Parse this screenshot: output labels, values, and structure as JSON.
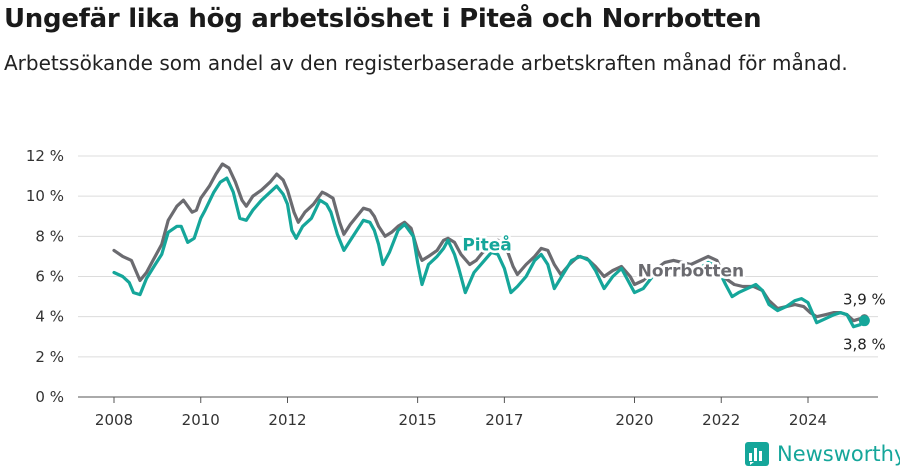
{
  "title": "Ungefär lika hög arbetslöshet i Piteå och Norrbotten",
  "subtitle": "Arbetssökande som andel av den registerbaserade arbetskraften månad för månad.",
  "brand": {
    "name": "Newsworthy",
    "icon": "newsworthy-logo-icon",
    "color": "#15a69a"
  },
  "chart_data": {
    "type": "line",
    "y_unit": "%",
    "ylim": [
      0,
      12
    ],
    "y_ticks": [
      "0 %",
      "2 %",
      "4 %",
      "6 %",
      "8 %",
      "10 %",
      "12 %"
    ],
    "y_tick_values": [
      0,
      2,
      4,
      6,
      8,
      10,
      12
    ],
    "x_ticks": [
      "2008",
      "2010",
      "2012",
      "2015",
      "2017",
      "2020",
      "2022",
      "2024"
    ],
    "x_tick_years": [
      2008,
      2010,
      2012,
      2015,
      2017,
      2020,
      2022,
      2024
    ],
    "xlim": [
      2007.8,
      2025.5
    ],
    "grid": "horizontal",
    "series": [
      {
        "name": "Norrbotten",
        "color": "#6b6b70",
        "label": "Norrbotten",
        "end_label": "3,9 %",
        "points": [
          [
            2008.0,
            7.3
          ],
          [
            2008.2,
            7.0
          ],
          [
            2008.4,
            6.8
          ],
          [
            2008.5,
            6.3
          ],
          [
            2008.6,
            5.8
          ],
          [
            2008.75,
            6.2
          ],
          [
            2008.9,
            6.8
          ],
          [
            2009.1,
            7.6
          ],
          [
            2009.25,
            8.8
          ],
          [
            2009.45,
            9.5
          ],
          [
            2009.6,
            9.8
          ],
          [
            2009.8,
            9.2
          ],
          [
            2009.9,
            9.3
          ],
          [
            2010.0,
            9.9
          ],
          [
            2010.2,
            10.5
          ],
          [
            2010.35,
            11.1
          ],
          [
            2010.5,
            11.6
          ],
          [
            2010.65,
            11.4
          ],
          [
            2010.8,
            10.7
          ],
          [
            2010.95,
            9.8
          ],
          [
            2011.05,
            9.5
          ],
          [
            2011.2,
            10.0
          ],
          [
            2011.4,
            10.3
          ],
          [
            2011.6,
            10.7
          ],
          [
            2011.75,
            11.1
          ],
          [
            2011.9,
            10.8
          ],
          [
            2012.0,
            10.3
          ],
          [
            2012.15,
            9.2
          ],
          [
            2012.25,
            8.7
          ],
          [
            2012.4,
            9.2
          ],
          [
            2012.6,
            9.6
          ],
          [
            2012.8,
            10.2
          ],
          [
            2012.9,
            10.1
          ],
          [
            2013.05,
            9.9
          ],
          [
            2013.2,
            8.7
          ],
          [
            2013.3,
            8.1
          ],
          [
            2013.45,
            8.6
          ],
          [
            2013.6,
            9.0
          ],
          [
            2013.75,
            9.4
          ],
          [
            2013.9,
            9.3
          ],
          [
            2014.0,
            9.0
          ],
          [
            2014.1,
            8.5
          ],
          [
            2014.25,
            8.0
          ],
          [
            2014.4,
            8.2
          ],
          [
            2014.55,
            8.5
          ],
          [
            2014.7,
            8.7
          ],
          [
            2014.85,
            8.4
          ],
          [
            2015.0,
            7.3
          ],
          [
            2015.1,
            6.8
          ],
          [
            2015.25,
            7.0
          ],
          [
            2015.45,
            7.3
          ],
          [
            2015.6,
            7.8
          ],
          [
            2015.7,
            7.9
          ],
          [
            2015.85,
            7.7
          ],
          [
            2016.0,
            7.1
          ],
          [
            2016.2,
            6.6
          ],
          [
            2016.35,
            6.8
          ],
          [
            2016.5,
            7.2
          ],
          [
            2016.7,
            7.5
          ],
          [
            2016.85,
            7.8
          ],
          [
            2017.05,
            7.4
          ],
          [
            2017.2,
            6.5
          ],
          [
            2017.3,
            6.1
          ],
          [
            2017.5,
            6.6
          ],
          [
            2017.7,
            7.0
          ],
          [
            2017.85,
            7.4
          ],
          [
            2018.0,
            7.3
          ],
          [
            2018.15,
            6.6
          ],
          [
            2018.3,
            6.1
          ],
          [
            2018.5,
            6.6
          ],
          [
            2018.7,
            7.0
          ],
          [
            2018.9,
            6.9
          ],
          [
            2019.1,
            6.5
          ],
          [
            2019.3,
            6.0
          ],
          [
            2019.5,
            6.3
          ],
          [
            2019.7,
            6.5
          ],
          [
            2019.9,
            6.0
          ],
          [
            2020.0,
            5.6
          ],
          [
            2020.2,
            5.8
          ],
          [
            2020.45,
            6.3
          ],
          [
            2020.7,
            6.7
          ],
          [
            2020.9,
            6.8
          ],
          [
            2021.1,
            6.7
          ],
          [
            2021.3,
            6.6
          ],
          [
            2021.5,
            6.8
          ],
          [
            2021.7,
            7.0
          ],
          [
            2021.9,
            6.8
          ],
          [
            2022.1,
            5.9
          ],
          [
            2022.3,
            5.6
          ],
          [
            2022.5,
            5.5
          ],
          [
            2022.75,
            5.5
          ],
          [
            2022.95,
            5.3
          ],
          [
            2023.1,
            4.8
          ],
          [
            2023.3,
            4.4
          ],
          [
            2023.5,
            4.5
          ],
          [
            2023.7,
            4.6
          ],
          [
            2023.9,
            4.5
          ],
          [
            2024.05,
            4.2
          ],
          [
            2024.2,
            4.0
          ],
          [
            2024.4,
            4.1
          ],
          [
            2024.6,
            4.2
          ],
          [
            2024.75,
            4.2
          ],
          [
            2024.9,
            4.1
          ],
          [
            2025.05,
            3.8
          ],
          [
            2025.2,
            3.9
          ],
          [
            2025.3,
            3.9
          ]
        ]
      },
      {
        "name": "Piteå",
        "color": "#15a69a",
        "label": "Piteå",
        "end_label": "3,8 %",
        "points": [
          [
            2008.0,
            6.2
          ],
          [
            2008.2,
            6.0
          ],
          [
            2008.35,
            5.7
          ],
          [
            2008.45,
            5.2
          ],
          [
            2008.6,
            5.1
          ],
          [
            2008.75,
            5.9
          ],
          [
            2008.95,
            6.6
          ],
          [
            2009.1,
            7.1
          ],
          [
            2009.25,
            8.2
          ],
          [
            2009.45,
            8.5
          ],
          [
            2009.55,
            8.5
          ],
          [
            2009.7,
            7.7
          ],
          [
            2009.85,
            7.9
          ],
          [
            2010.0,
            8.9
          ],
          [
            2010.1,
            9.3
          ],
          [
            2010.3,
            10.2
          ],
          [
            2010.45,
            10.7
          ],
          [
            2010.6,
            10.9
          ],
          [
            2010.75,
            10.2
          ],
          [
            2010.9,
            8.9
          ],
          [
            2011.05,
            8.8
          ],
          [
            2011.2,
            9.3
          ],
          [
            2011.4,
            9.8
          ],
          [
            2011.6,
            10.2
          ],
          [
            2011.75,
            10.5
          ],
          [
            2011.9,
            10.1
          ],
          [
            2012.0,
            9.6
          ],
          [
            2012.1,
            8.3
          ],
          [
            2012.2,
            7.9
          ],
          [
            2012.35,
            8.5
          ],
          [
            2012.55,
            8.9
          ],
          [
            2012.75,
            9.8
          ],
          [
            2012.9,
            9.6
          ],
          [
            2013.0,
            9.2
          ],
          [
            2013.15,
            8.1
          ],
          [
            2013.3,
            7.3
          ],
          [
            2013.45,
            7.8
          ],
          [
            2013.6,
            8.3
          ],
          [
            2013.75,
            8.8
          ],
          [
            2013.9,
            8.7
          ],
          [
            2014.0,
            8.3
          ],
          [
            2014.1,
            7.6
          ],
          [
            2014.2,
            6.6
          ],
          [
            2014.35,
            7.2
          ],
          [
            2014.55,
            8.3
          ],
          [
            2014.7,
            8.6
          ],
          [
            2014.9,
            8.0
          ],
          [
            2015.0,
            6.7
          ],
          [
            2015.1,
            5.6
          ],
          [
            2015.25,
            6.6
          ],
          [
            2015.45,
            7.0
          ],
          [
            2015.6,
            7.4
          ],
          [
            2015.7,
            7.8
          ],
          [
            2015.85,
            7.1
          ],
          [
            2015.95,
            6.4
          ],
          [
            2016.1,
            5.2
          ],
          [
            2016.3,
            6.2
          ],
          [
            2016.5,
            6.7
          ],
          [
            2016.7,
            7.2
          ],
          [
            2016.85,
            7.1
          ],
          [
            2017.0,
            6.4
          ],
          [
            2017.15,
            5.2
          ],
          [
            2017.3,
            5.5
          ],
          [
            2017.5,
            6.0
          ],
          [
            2017.7,
            6.8
          ],
          [
            2017.85,
            7.1
          ],
          [
            2018.0,
            6.6
          ],
          [
            2018.15,
            5.4
          ],
          [
            2018.35,
            6.1
          ],
          [
            2018.55,
            6.8
          ],
          [
            2018.75,
            7.0
          ],
          [
            2018.95,
            6.8
          ],
          [
            2019.1,
            6.3
          ],
          [
            2019.3,
            5.4
          ],
          [
            2019.5,
            6.0
          ],
          [
            2019.7,
            6.4
          ],
          [
            2019.85,
            5.8
          ],
          [
            2020.0,
            5.2
          ],
          [
            2020.2,
            5.4
          ],
          [
            2020.45,
            6.1
          ],
          [
            2020.7,
            6.4
          ],
          [
            2020.9,
            6.5
          ],
          [
            2021.1,
            6.3
          ],
          [
            2021.3,
            6.1
          ],
          [
            2021.5,
            6.4
          ],
          [
            2021.7,
            6.7
          ],
          [
            2021.9,
            6.5
          ],
          [
            2022.1,
            5.6
          ],
          [
            2022.25,
            5.0
          ],
          [
            2022.4,
            5.2
          ],
          [
            2022.6,
            5.4
          ],
          [
            2022.8,
            5.6
          ],
          [
            2022.95,
            5.3
          ],
          [
            2023.1,
            4.6
          ],
          [
            2023.3,
            4.3
          ],
          [
            2023.5,
            4.5
          ],
          [
            2023.7,
            4.8
          ],
          [
            2023.85,
            4.9
          ],
          [
            2024.0,
            4.7
          ],
          [
            2024.2,
            3.7
          ],
          [
            2024.4,
            3.9
          ],
          [
            2024.6,
            4.1
          ],
          [
            2024.75,
            4.2
          ],
          [
            2024.9,
            4.1
          ],
          [
            2025.05,
            3.5
          ],
          [
            2025.2,
            3.6
          ],
          [
            2025.3,
            3.8
          ]
        ]
      }
    ]
  }
}
